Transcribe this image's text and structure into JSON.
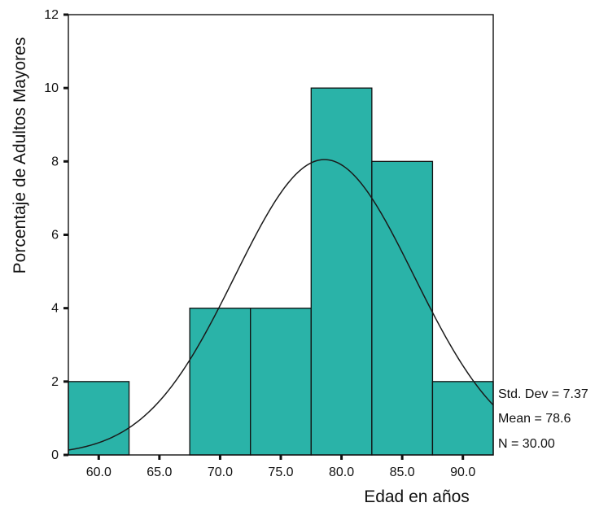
{
  "chart_data": {
    "type": "bar",
    "title": "",
    "xlabel": "Edad en años",
    "ylabel": "Porcentaje de Adultos Mayores",
    "bins": [
      {
        "center": 60.0,
        "value": 2
      },
      {
        "center": 65.0,
        "value": 0
      },
      {
        "center": 70.0,
        "value": 4
      },
      {
        "center": 75.0,
        "value": 4
      },
      {
        "center": 80.0,
        "value": 10
      },
      {
        "center": 85.0,
        "value": 8
      },
      {
        "center": 90.0,
        "value": 2
      }
    ],
    "bin_width": 5,
    "x_tick_labels": [
      "60.0",
      "65.0",
      "70.0",
      "75.0",
      "80.0",
      "85.0",
      "90.0"
    ],
    "y_ticks": [
      0,
      2,
      4,
      6,
      8,
      10,
      12
    ],
    "xlim": [
      57.5,
      92.5
    ],
    "ylim": [
      0,
      12
    ],
    "normal_curve": {
      "mean": 78.6,
      "std_dev": 7.37,
      "peak_value": 8.05
    },
    "stats": [
      "Std. Dev = 7.37",
      "Mean = 78.6",
      "N = 30.00"
    ],
    "grid": false,
    "colors": {
      "bar_fill": "#2ab3a8",
      "bar_stroke": "#111111",
      "curve": "#1a1a1a"
    }
  }
}
